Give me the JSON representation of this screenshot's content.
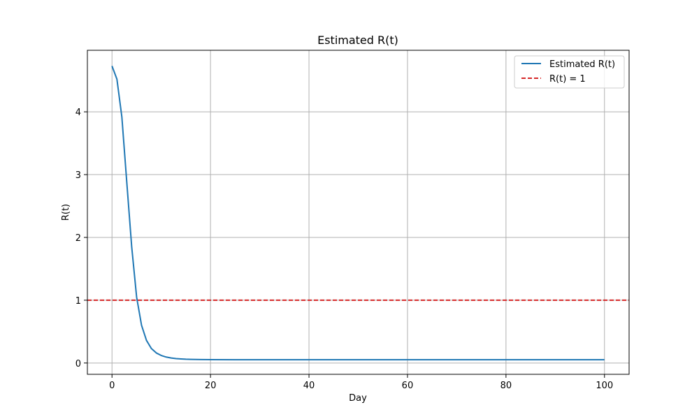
{
  "chart_data": {
    "type": "line",
    "title": "Estimated R(t)",
    "xlabel": "Day",
    "ylabel": "R(t)",
    "xlim": [
      -5,
      105
    ],
    "ylim": [
      -0.18,
      4.98
    ],
    "xticks": [
      0,
      20,
      40,
      60,
      80,
      100
    ],
    "yticks": [
      0,
      1,
      2,
      3,
      4
    ],
    "grid": true,
    "legend": {
      "placement": "top-right"
    },
    "series": [
      {
        "name": "Estimated R(t)",
        "style": "solid",
        "color": "#1f77b4",
        "x": [
          0,
          1,
          2,
          3,
          4,
          5,
          6,
          7,
          8,
          9,
          10,
          11,
          12,
          13,
          14,
          15,
          16,
          18,
          20,
          25,
          30,
          40,
          50,
          60,
          70,
          80,
          90,
          100
        ],
        "y": [
          4.73,
          4.52,
          3.92,
          2.88,
          1.85,
          1.05,
          0.6,
          0.36,
          0.23,
          0.16,
          0.12,
          0.095,
          0.08,
          0.07,
          0.065,
          0.06,
          0.058,
          0.055,
          0.053,
          0.052,
          0.052,
          0.052,
          0.052,
          0.052,
          0.052,
          0.052,
          0.052,
          0.052
        ]
      },
      {
        "name": "R(t) = 1",
        "style": "dashed",
        "color": "#d62728",
        "type": "hline",
        "y": 1
      }
    ]
  }
}
